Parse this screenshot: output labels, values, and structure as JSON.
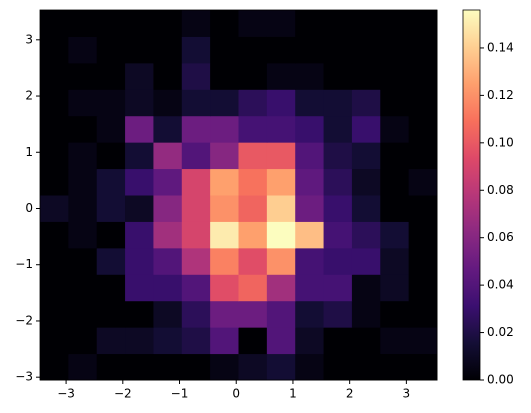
{
  "chart_data": {
    "type": "hist2d",
    "colormap": "magma",
    "xbins": [
      -3.46,
      -2.96,
      -2.46,
      -1.96,
      -1.46,
      -0.96,
      -0.46,
      0.04,
      0.54,
      1.04,
      1.54,
      2.04,
      2.54,
      3.04,
      3.54
    ],
    "ybins": [
      -3.05,
      -2.58,
      -2.11,
      -1.64,
      -1.17,
      -0.7,
      -0.23,
      0.24,
      0.71,
      1.18,
      1.65,
      2.12,
      2.59,
      3.06,
      3.53
    ],
    "z": [
      [
        0,
        0.005,
        0,
        0,
        0,
        0,
        0.005,
        0.01,
        0.015,
        0.005,
        0,
        0,
        0,
        0
      ],
      [
        0,
        0,
        0.01,
        0.01,
        0.015,
        0.02,
        0.04,
        0,
        0.04,
        0.01,
        0,
        0,
        0.005,
        0.005
      ],
      [
        0,
        0,
        0,
        0,
        0.01,
        0.025,
        0.05,
        0.05,
        0.04,
        0.015,
        0.02,
        0.005,
        0,
        0
      ],
      [
        0,
        0,
        0,
        0.03,
        0.03,
        0.04,
        0.095,
        0.105,
        0.07,
        0.035,
        0.035,
        0.005,
        0.01,
        0
      ],
      [
        0,
        0,
        0.015,
        0.03,
        0.04,
        0.075,
        0.115,
        0.095,
        0.12,
        0.035,
        0.03,
        0.03,
        0.01,
        0
      ],
      [
        0,
        0.005,
        0,
        0.03,
        0.07,
        0.09,
        0.15,
        0.125,
        0.156,
        0.135,
        0.035,
        0.025,
        0.015,
        0
      ],
      [
        0.01,
        0.005,
        0.015,
        0.01,
        0.06,
        0.09,
        0.12,
        0.105,
        0.14,
        0.05,
        0.03,
        0.015,
        0,
        0
      ],
      [
        0,
        0.005,
        0.015,
        0.03,
        0.045,
        0.09,
        0.125,
        0.11,
        0.125,
        0.045,
        0.025,
        0.01,
        0,
        0.005
      ],
      [
        0,
        0.005,
        0,
        0.015,
        0.065,
        0.04,
        0.06,
        0.1,
        0.1,
        0.04,
        0.02,
        0.015,
        0,
        0
      ],
      [
        0,
        0,
        0.005,
        0.05,
        0.015,
        0.05,
        0.05,
        0.035,
        0.035,
        0.03,
        0.015,
        0.03,
        0.005,
        0
      ],
      [
        0,
        0.005,
        0.005,
        0.01,
        0.005,
        0.015,
        0.015,
        0.025,
        0.03,
        0.015,
        0.015,
        0.02,
        0,
        0
      ],
      [
        0,
        0,
        0,
        0.01,
        0,
        0.02,
        0,
        0,
        0.005,
        0.005,
        0,
        0,
        0,
        0
      ],
      [
        0,
        0.005,
        0,
        0,
        0,
        0.015,
        0,
        0,
        0,
        0,
        0,
        0,
        0,
        0
      ],
      [
        0,
        0,
        0,
        0,
        0,
        0.005,
        0,
        0.005,
        0.005,
        0,
        0,
        0,
        0,
        0
      ]
    ],
    "xlim": [
      -3.46,
      3.54
    ],
    "ylim": [
      -3.05,
      3.53
    ],
    "clim": [
      0,
      0.156
    ],
    "xticks": [
      {
        "value": -3,
        "label": "−3"
      },
      {
        "value": -2,
        "label": "−2"
      },
      {
        "value": -1,
        "label": "−1"
      },
      0,
      1,
      2,
      3
    ],
    "yticks": [
      {
        "value": -3,
        "label": "−3"
      },
      {
        "value": -2,
        "label": "−2"
      },
      {
        "value": -1,
        "label": "−1"
      },
      0,
      1,
      2,
      3
    ],
    "cticks": [
      {
        "value": 0,
        "label": "0.00"
      },
      {
        "value": 0.02,
        "label": "0.02"
      },
      {
        "value": 0.04,
        "label": "0.04"
      },
      {
        "value": 0.06,
        "label": "0.06"
      },
      {
        "value": 0.08,
        "label": "0.08"
      },
      {
        "value": 0.1,
        "label": "0.10"
      },
      {
        "value": 0.12,
        "label": "0.12"
      },
      {
        "value": 0.14,
        "label": "0.14"
      }
    ]
  }
}
